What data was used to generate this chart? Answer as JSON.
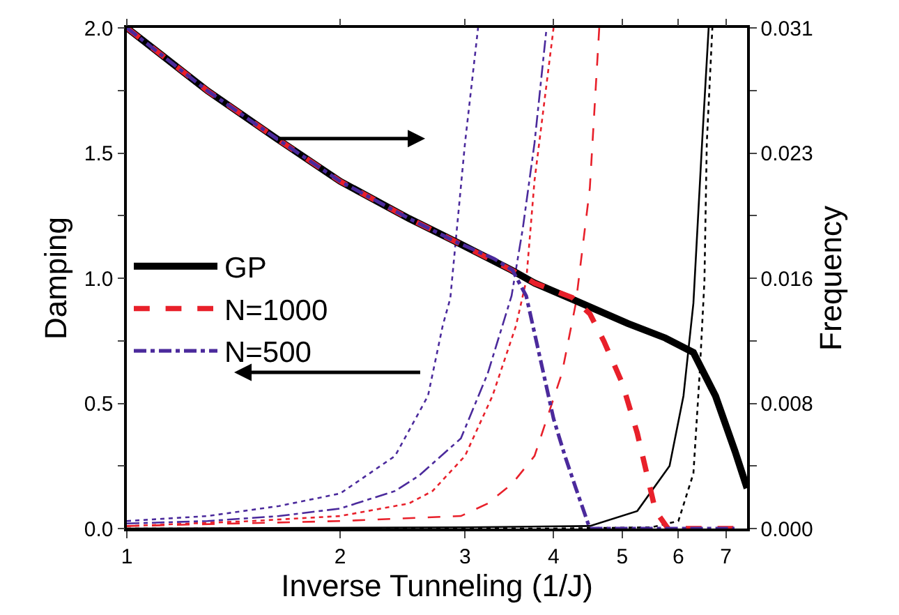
{
  "chart_data": {
    "type": "line",
    "xlabel": "Inverse Tunneling (1/J)",
    "ylabel": "Damping",
    "y2label": "Frequency",
    "log": "x",
    "xlim": [
      1,
      7.5
    ],
    "xticks": [
      1,
      2,
      3,
      4,
      5,
      6,
      7
    ],
    "ylim": [
      0,
      2
    ],
    "yticks": [
      {
        "value": 0,
        "label": "0.0"
      },
      {
        "value": 0.25,
        "label": null
      },
      {
        "value": 0.5,
        "label": "0.5"
      },
      {
        "value": 0.75,
        "label": null
      },
      {
        "value": 1,
        "label": "1.0"
      },
      {
        "value": 1.25,
        "label": null
      },
      {
        "value": 1.5,
        "label": "1.5"
      },
      {
        "value": 1.75,
        "label": null
      },
      {
        "value": 2,
        "label": "2.0"
      }
    ],
    "y2lim": [
      0,
      0.031
    ],
    "y2ticks": [
      {
        "value": 0,
        "label": "0.000"
      },
      {
        "value": 0.003875,
        "label": null
      },
      {
        "value": 0.00775,
        "label": "0.008"
      },
      {
        "value": 0.011625,
        "label": null
      },
      {
        "value": 0.0155,
        "label": "0.016"
      },
      {
        "value": 0.019375,
        "label": null
      },
      {
        "value": 0.02325,
        "label": "0.023"
      },
      {
        "value": 0.027125,
        "label": null
      },
      {
        "value": 0.031,
        "label": "0.031"
      }
    ],
    "legend": "left",
    "marker": "none",
    "series": [
      {
        "name": "GP",
        "color": "#000000",
        "axis": "y2",
        "line_style": "solid",
        "x": [
          1,
          1.3,
          1.62,
          2,
          2.5,
          2.93,
          3.49,
          3.76,
          4.3,
          5.09,
          5.75,
          6.3,
          6.77,
          7.21,
          7.5
        ],
        "values": [
          0.031,
          0.0271,
          0.0242,
          0.0215,
          0.0192,
          0.0177,
          0.016,
          0.0152,
          0.0141,
          0.0127,
          0.0118,
          0.0109,
          0.0082,
          0.0048,
          0.0025
        ]
      },
      {
        "name": "N=1000",
        "color": "#e8202a",
        "axis": "y2",
        "line_style": "dashed",
        "x": [
          1,
          1.3,
          1.62,
          2,
          2.5,
          2.93,
          3.49,
          3.76,
          4.25,
          4.5,
          4.71,
          5.0,
          5.25,
          5.57,
          5.8,
          6.5,
          7.4
        ],
        "values": [
          0.031,
          0.0271,
          0.0242,
          0.0215,
          0.0192,
          0.0177,
          0.016,
          0.0152,
          0.0143,
          0.0133,
          0.0116,
          0.009,
          0.0059,
          0.0011,
          0,
          0,
          0
        ]
      },
      {
        "name": "N=500",
        "color": "#4b2a9c",
        "axis": "y2",
        "line_style": "dashdot",
        "x": [
          1,
          1.3,
          1.62,
          2,
          2.5,
          2.93,
          3.3,
          3.5,
          3.66,
          3.8,
          4.0,
          4.15,
          4.3,
          4.5,
          5,
          6,
          7.2
        ],
        "values": [
          0.031,
          0.0271,
          0.0242,
          0.0215,
          0.0192,
          0.0177,
          0.0167,
          0.016,
          0.0144,
          0.0112,
          0.0068,
          0.0045,
          0.0025,
          0,
          0,
          0,
          0
        ]
      },
      {
        "color": "#000000",
        "axis": "y",
        "line_style": "solid",
        "x": [
          1,
          3,
          4.5,
          5.25,
          5.83,
          6.1,
          6.3,
          6.48,
          6.62
        ],
        "values": [
          0,
          0.005,
          0.01,
          0.07,
          0.25,
          0.53,
          0.9,
          1.54,
          2.0
        ]
      },
      {
        "color": "#000000",
        "axis": "y",
        "line_style": "dotted",
        "x": [
          1,
          4,
          5.5,
          6.0,
          6.3,
          6.43,
          6.53,
          6.58,
          6.7
        ],
        "values": [
          0,
          0,
          0.005,
          0.03,
          0.22,
          0.62,
          0.99,
          1.54,
          2.0
        ]
      },
      {
        "color": "#e8202a",
        "axis": "y",
        "line_style": "dashed",
        "x": [
          1,
          2,
          2.96,
          3.23,
          3.5,
          3.76,
          4.11,
          4.3,
          4.5,
          4.64
        ],
        "values": [
          0.01,
          0.03,
          0.05,
          0.1,
          0.18,
          0.29,
          0.62,
          0.9,
          1.36,
          2.0
        ]
      },
      {
        "color": "#e8202a",
        "axis": "y",
        "line_style": "dotted",
        "x": [
          1,
          1.5,
          2,
          2.5,
          2.7,
          3.0,
          3.28,
          3.54,
          3.66,
          3.76,
          3.88,
          4.0
        ],
        "values": [
          0.01,
          0.03,
          0.05,
          0.1,
          0.15,
          0.29,
          0.53,
          0.81,
          0.99,
          1.39,
          1.7,
          2.0
        ]
      },
      {
        "color": "#4b2a9c",
        "axis": "y",
        "line_style": "dashdot",
        "x": [
          1,
          1.3,
          1.64,
          2,
          2.39,
          2.58,
          2.96,
          3.23,
          3.49,
          3.62,
          3.76,
          3.91
        ],
        "values": [
          0.02,
          0.03,
          0.05,
          0.08,
          0.15,
          0.21,
          0.36,
          0.62,
          0.93,
          1.2,
          1.54,
          2.0
        ]
      },
      {
        "color": "#4b2a9c",
        "axis": "y",
        "line_style": "dotted",
        "x": [
          1,
          1.3,
          1.64,
          2,
          2.39,
          2.66,
          2.79,
          2.86,
          3.0,
          3.13
        ],
        "values": [
          0.03,
          0.05,
          0.09,
          0.14,
          0.29,
          0.53,
          0.81,
          0.92,
          1.54,
          2.0
        ]
      }
    ]
  }
}
